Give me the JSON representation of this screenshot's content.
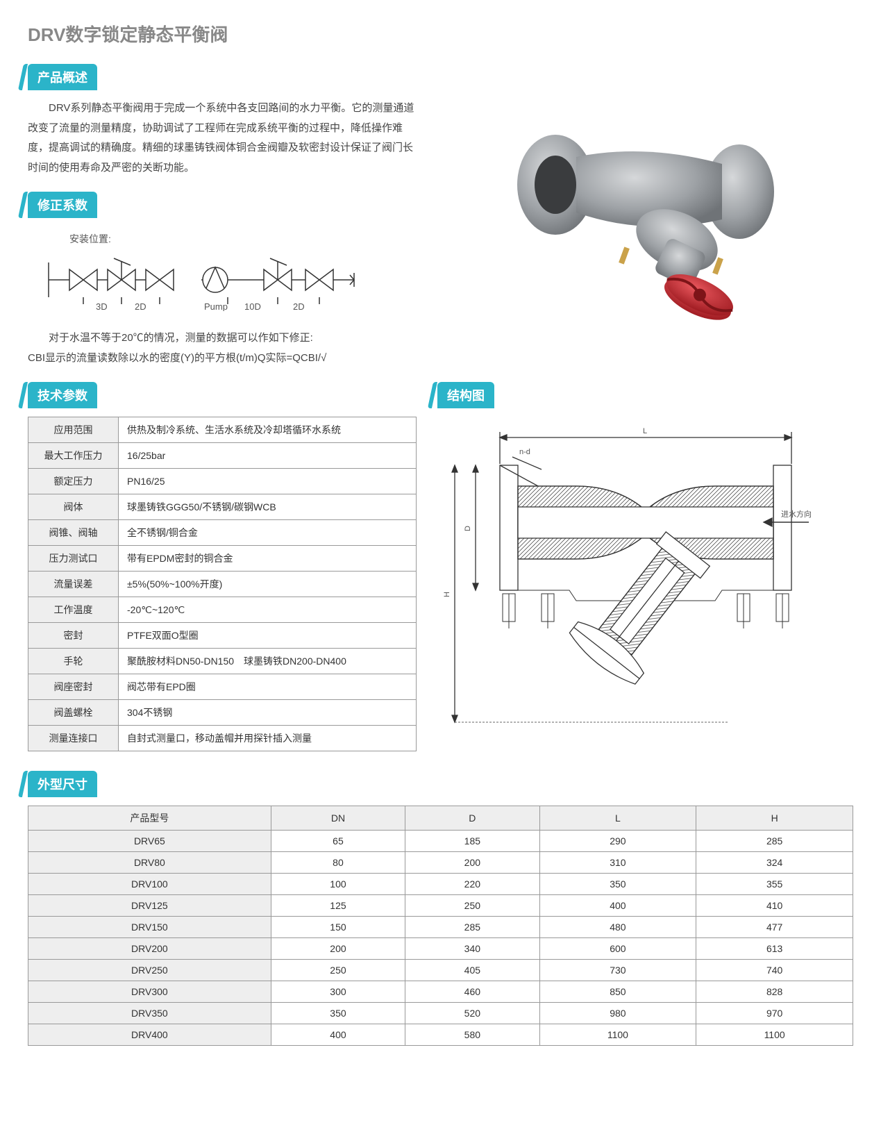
{
  "title": "DRV数字锁定静态平衡阀",
  "sections": {
    "overview": "产品概述",
    "correction": "修正系数",
    "tech": "技术参数",
    "structure": "结构图",
    "dimensions": "外型尺寸"
  },
  "overview_text": "DRV系列静态平衡阀用于完成一个系统中各支回路间的水力平衡。它的测量通道改变了流量的测量精度，协助调试了工程师在完成系统平衡的过程中，降低操作难度，提高调试的精确度。精细的球墨铸铁阀体铜合金阀瓣及软密封设计保证了阀门长时间的使用寿命及严密的关断功能。",
  "install_label": "安装位置:",
  "diagram_labels": {
    "d3": "3D",
    "d2a": "2D",
    "pump": "Pump",
    "d10": "10D",
    "d2b": "2D"
  },
  "correction_text1": "对于水温不等于20℃的情况，测量的数据可以作如下修正:",
  "correction_text2": "CBI显示的流量读数除以水的密度(Y)的平方根(t/m)Q实际=QCBI/√",
  "spec_table": [
    {
      "label": "应用范围",
      "value": "供热及制冷系统、生活水系统及冷却塔循环水系统"
    },
    {
      "label": "最大工作压力",
      "value": "16/25bar"
    },
    {
      "label": "额定压力",
      "value": "PN16/25"
    },
    {
      "label": "阀体",
      "value": "球墨铸铁GGG50/不锈钢/碳钢WCB"
    },
    {
      "label": "阀锥、阀轴",
      "value": "全不锈钢/铜合金"
    },
    {
      "label": "压力测试口",
      "value": "带有EPDM密封的铜合金"
    },
    {
      "label": "流量误差",
      "value": "±5%(50%~100%开度)"
    },
    {
      "label": "工作温度",
      "value": "-20℃~120℃"
    },
    {
      "label": "密封",
      "value": "PTFE双面O型圈"
    },
    {
      "label": "手轮",
      "value": "聚酰胺材料DN50-DN150　球墨铸铁DN200-DN400"
    },
    {
      "label": "阀座密封",
      "value": "阀芯带有EPD圈"
    },
    {
      "label": "阀盖螺栓",
      "value": "304不锈钢"
    },
    {
      "label": "测量连接口",
      "value": "自封式测量口，移动盖帽并用探针插入测量"
    }
  ],
  "structure_labels": {
    "nd": "n-d",
    "L": "L",
    "D": "D",
    "H": "H",
    "flow": "进水方向"
  },
  "dim_headers": [
    "产品型号",
    "DN",
    "D",
    "L",
    "H"
  ],
  "dim_rows": [
    [
      "DRV65",
      "65",
      "185",
      "290",
      "285"
    ],
    [
      "DRV80",
      "80",
      "200",
      "310",
      "324"
    ],
    [
      "DRV100",
      "100",
      "220",
      "350",
      "355"
    ],
    [
      "DRV125",
      "125",
      "250",
      "400",
      "410"
    ],
    [
      "DRV150",
      "150",
      "285",
      "480",
      "477"
    ],
    [
      "DRV200",
      "200",
      "340",
      "600",
      "613"
    ],
    [
      "DRV250",
      "250",
      "405",
      "730",
      "740"
    ],
    [
      "DRV300",
      "300",
      "460",
      "850",
      "828"
    ],
    [
      "DRV350",
      "350",
      "520",
      "980",
      "970"
    ],
    [
      "DRV400",
      "400",
      "580",
      "1100",
      "1100"
    ]
  ],
  "colors": {
    "badge_bg": "#2bb4c9",
    "badge_fg": "#ffffff",
    "title_color": "#888888",
    "border": "#999999",
    "cell_shade": "#eeeeee",
    "valve_body": "#a8abae",
    "valve_handle": "#c8232a"
  }
}
